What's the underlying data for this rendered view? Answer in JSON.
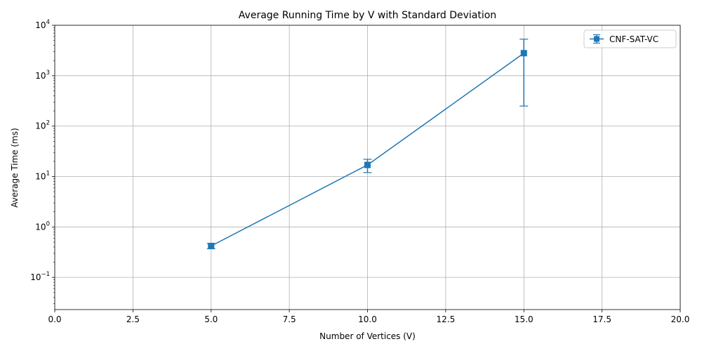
{
  "chart_data": {
    "type": "line",
    "title": "Average Running Time by V with Standard Deviation",
    "xlabel": "Number of Vertices (V)",
    "ylabel": "Average Time (ms)",
    "xlim": [
      0,
      20
    ],
    "ylim": [
      0.023,
      10000
    ],
    "yscale": "log",
    "grid": true,
    "legend_position": "top-right",
    "x_ticks": [
      "0.0",
      "2.5",
      "5.0",
      "7.5",
      "10.0",
      "12.5",
      "15.0",
      "17.5",
      "20.0"
    ],
    "x_tick_values": [
      0,
      2.5,
      5,
      7.5,
      10,
      12.5,
      15,
      17.5,
      20
    ],
    "y_tick_values": [
      0.1,
      1,
      10,
      100,
      1000,
      10000
    ],
    "y_tick_exponents": [
      "−1",
      "0",
      "1",
      "2",
      "3",
      "4"
    ],
    "y_tick_base": "10",
    "series": [
      {
        "name": "CNF-SAT-VC",
        "color": "#1f77b4",
        "marker": "square",
        "x": [
          5,
          10,
          15
        ],
        "y": [
          0.42,
          17,
          2800
        ],
        "err_low": [
          0.37,
          12,
          250
        ],
        "err_high": [
          0.47,
          22,
          5300
        ]
      }
    ]
  }
}
